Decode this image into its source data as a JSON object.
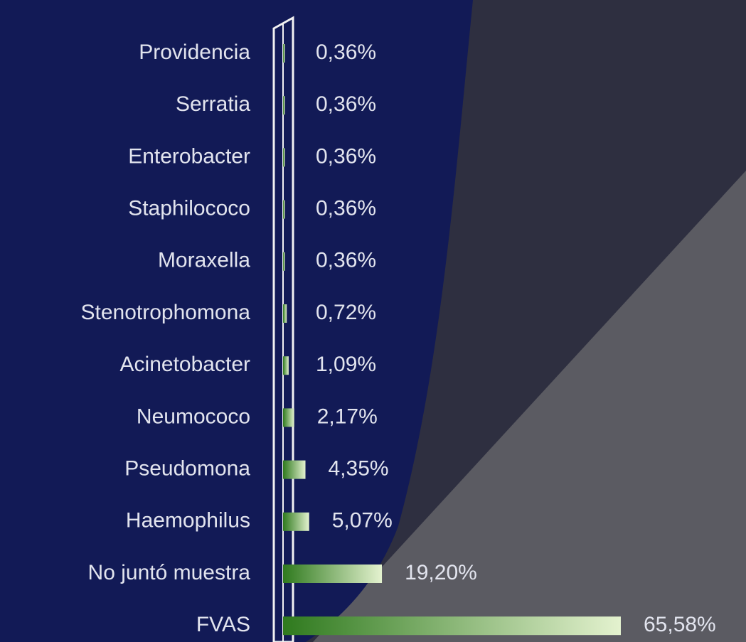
{
  "chart_data": {
    "type": "barh",
    "categories": [
      "Providencia",
      "Serratia",
      "Enterobacter",
      "Staphilococo",
      "Moraxella",
      "Stenotrophomona",
      "Acinetobacter",
      "Neumococo",
      "Pseudomona",
      "Haemophilus",
      "No juntó  muestra",
      "FVAS"
    ],
    "values": [
      0.36,
      0.36,
      0.36,
      0.36,
      0.36,
      0.72,
      1.09,
      2.17,
      4.35,
      5.07,
      19.2,
      65.58
    ],
    "value_labels": [
      "0,36%",
      "0,36%",
      "0,36%",
      "0,36%",
      "0,36%",
      "0,72%",
      "1,09%",
      "2,17%",
      "4,35%",
      "5,07%",
      "19,20%",
      "65,58%"
    ],
    "colors": [
      "#2f7a1e",
      "#e4f2cf"
    ],
    "xlim": [
      0,
      70
    ]
  }
}
